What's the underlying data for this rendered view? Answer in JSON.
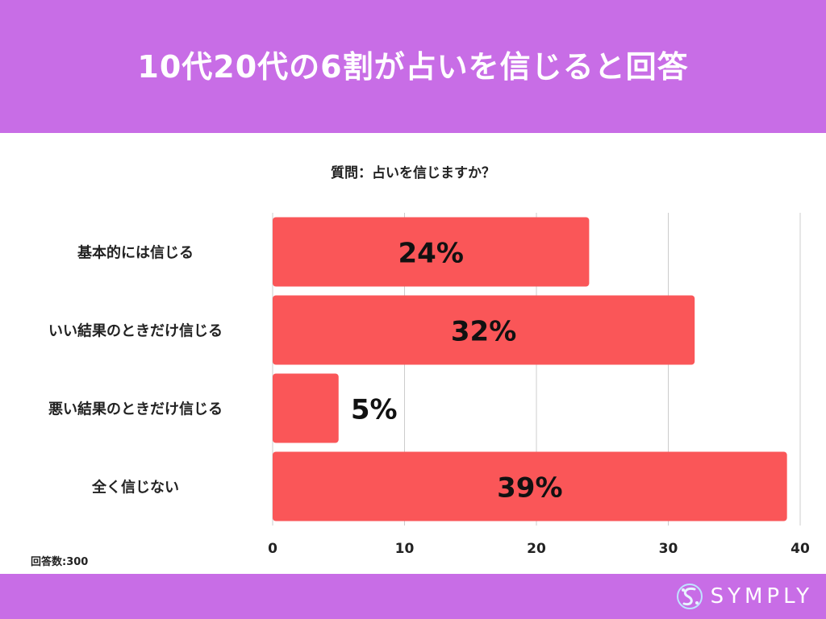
{
  "header": {
    "title": "10代20代の6割が占いを信じると回答"
  },
  "question": "質問：占いを信じますか？",
  "response_count": "回答数:300",
  "footer": {
    "logo_text": "SYMPLY"
  },
  "colors": {
    "header_bg": "#c86de6",
    "bar": "#fa5658",
    "grid": "#cccccc"
  },
  "chart_data": {
    "type": "bar",
    "orientation": "horizontal",
    "categories": [
      "基本的には信じる",
      "いい結果のときだけ信じる",
      "悪い結果のときだけ信じる",
      "全く信じない"
    ],
    "values": [
      24,
      32,
      5,
      39
    ],
    "value_labels": [
      "24%",
      "32%",
      "5%",
      "39%"
    ],
    "xlim": [
      0,
      40
    ],
    "xticks": [
      "0",
      "10",
      "20",
      "30",
      "40"
    ],
    "grid": true,
    "legend": "none"
  }
}
